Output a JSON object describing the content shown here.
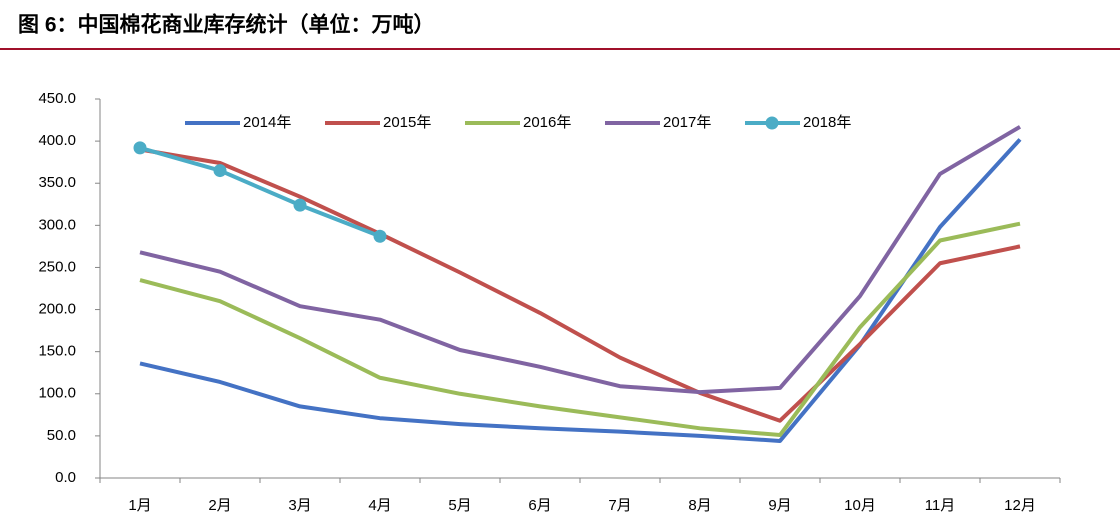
{
  "chart_data": {
    "type": "line",
    "title": "图 6：中国棉花商业库存统计（单位：万吨）",
    "categories": [
      "1月",
      "2月",
      "3月",
      "4月",
      "5月",
      "6月",
      "7月",
      "8月",
      "9月",
      "10月",
      "11月",
      "12月"
    ],
    "series": [
      {
        "name": "2014年",
        "color": "#4472c4",
        "values": [
          136,
          114,
          85,
          71,
          64,
          59,
          55,
          50,
          44,
          158,
          298,
          402
        ]
      },
      {
        "name": "2015年",
        "color": "#c0504d",
        "values": [
          390,
          374,
          334,
          290,
          244,
          196,
          143,
          101,
          68,
          159,
          255,
          275
        ]
      },
      {
        "name": "2016年",
        "color": "#9bbb59",
        "values": [
          235,
          210,
          166,
          119,
          100,
          85,
          72,
          59,
          51,
          179,
          282,
          302
        ]
      },
      {
        "name": "2017年",
        "color": "#8064a2",
        "values": [
          268,
          245,
          204,
          188,
          152,
          132,
          109,
          102,
          107,
          216,
          361,
          417
        ]
      },
      {
        "name": "2018年",
        "color": "#4bacc6",
        "markers": true,
        "values": [
          392,
          365,
          324,
          287,
          null,
          null,
          null,
          null,
          null,
          null,
          null,
          null
        ]
      }
    ],
    "ylim": [
      0,
      450
    ],
    "yticks": [
      {
        "value": 0,
        "label": "0.0"
      },
      {
        "value": 50,
        "label": "50.0"
      },
      {
        "value": 100,
        "label": "100.0"
      },
      {
        "value": 150,
        "label": "150.0"
      },
      {
        "value": 200,
        "label": "200.0"
      },
      {
        "value": 250,
        "label": "250.0"
      },
      {
        "value": 300,
        "label": "300.0"
      },
      {
        "value": 350,
        "label": "350.0"
      },
      {
        "value": 400,
        "label": "400.0"
      },
      {
        "value": 450,
        "label": "450.0"
      }
    ],
    "grid": false,
    "legend": "top"
  }
}
